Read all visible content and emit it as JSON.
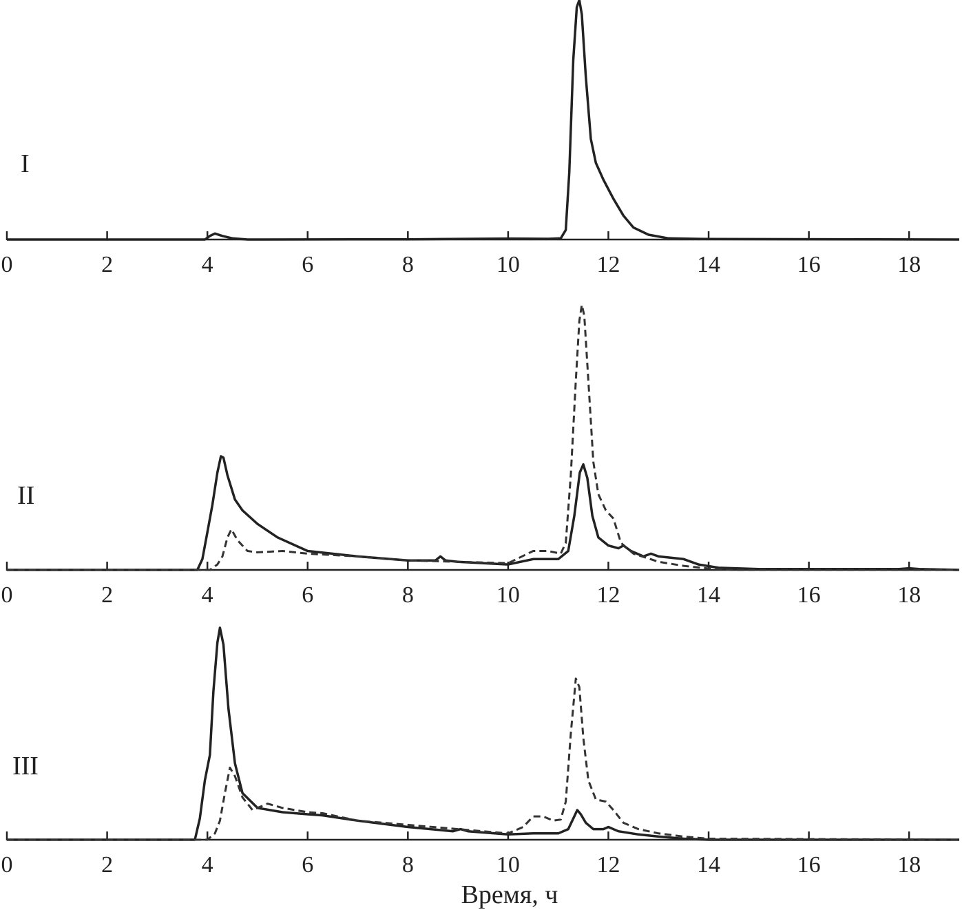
{
  "chart_data": [
    {
      "type": "line",
      "panel_label": "I",
      "xlim": [
        0,
        19
      ],
      "ylim": [
        0,
        100
      ],
      "xticks": [
        0,
        2,
        4,
        6,
        8,
        10,
        12,
        14,
        16,
        18
      ],
      "grid": false,
      "series": [
        {
          "style": "solid",
          "points": [
            [
              0,
              0
            ],
            [
              3.95,
              0
            ],
            [
              4.05,
              1.5
            ],
            [
              4.15,
              2.5
            ],
            [
              4.3,
              1.5
            ],
            [
              4.5,
              0.5
            ],
            [
              4.8,
              0
            ],
            [
              8,
              0.1
            ],
            [
              10,
              0.4
            ],
            [
              10.8,
              0.3
            ],
            [
              11.05,
              0.5
            ],
            [
              11.15,
              4
            ],
            [
              11.22,
              28
            ],
            [
              11.3,
              75
            ],
            [
              11.37,
              97
            ],
            [
              11.42,
              100
            ],
            [
              11.47,
              94
            ],
            [
              11.55,
              68
            ],
            [
              11.65,
              42
            ],
            [
              11.75,
              32
            ],
            [
              11.9,
              25
            ],
            [
              12.1,
              17
            ],
            [
              12.3,
              10
            ],
            [
              12.5,
              5
            ],
            [
              12.8,
              2
            ],
            [
              13.2,
              0.5
            ],
            [
              14,
              0.2
            ],
            [
              19,
              0
            ]
          ]
        }
      ]
    },
    {
      "type": "line",
      "panel_label": "II",
      "xlim": [
        0,
        19
      ],
      "ylim": [
        0,
        100
      ],
      "xticks": [
        0,
        2,
        4,
        6,
        8,
        10,
        12,
        14,
        16,
        18
      ],
      "grid": false,
      "series": [
        {
          "style": "solid",
          "points": [
            [
              0,
              0
            ],
            [
              3.8,
              0
            ],
            [
              3.9,
              4
            ],
            [
              4.0,
              14
            ],
            [
              4.1,
              24
            ],
            [
              4.2,
              36
            ],
            [
              4.27,
              42
            ],
            [
              4.32,
              41.5
            ],
            [
              4.4,
              35
            ],
            [
              4.55,
              26
            ],
            [
              4.7,
              22
            ],
            [
              5.0,
              17
            ],
            [
              5.4,
              12
            ],
            [
              6,
              7
            ],
            [
              7,
              5
            ],
            [
              8,
              3.5
            ],
            [
              8.55,
              3.5
            ],
            [
              8.65,
              5
            ],
            [
              8.75,
              3.5
            ],
            [
              9.0,
              3
            ],
            [
              10,
              2
            ],
            [
              10.5,
              4
            ],
            [
              11.0,
              4
            ],
            [
              11.2,
              7
            ],
            [
              11.32,
              20
            ],
            [
              11.43,
              36
            ],
            [
              11.5,
              39
            ],
            [
              11.58,
              34
            ],
            [
              11.68,
              20
            ],
            [
              11.8,
              12
            ],
            [
              12.0,
              9
            ],
            [
              12.2,
              8
            ],
            [
              12.3,
              9
            ],
            [
              12.45,
              7
            ],
            [
              12.7,
              5
            ],
            [
              12.85,
              6
            ],
            [
              13.0,
              5
            ],
            [
              13.5,
              4
            ],
            [
              13.8,
              2
            ],
            [
              14.2,
              0.8
            ],
            [
              15,
              0.3
            ],
            [
              17.8,
              0.3
            ],
            [
              18,
              0.6
            ],
            [
              18.2,
              0.3
            ],
            [
              19,
              0
            ]
          ]
        },
        {
          "style": "dashed",
          "points": [
            [
              0,
              0
            ],
            [
              4.05,
              0
            ],
            [
              4.2,
              2
            ],
            [
              4.3,
              5
            ],
            [
              4.4,
              12
            ],
            [
              4.48,
              15
            ],
            [
              4.6,
              11
            ],
            [
              4.8,
              7
            ],
            [
              5.0,
              6.5
            ],
            [
              5.5,
              7
            ],
            [
              6,
              6
            ],
            [
              7,
              5
            ],
            [
              8,
              3.5
            ],
            [
              9,
              3
            ],
            [
              10,
              2.5
            ],
            [
              10.5,
              7
            ],
            [
              10.8,
              7
            ],
            [
              11.05,
              6
            ],
            [
              11.15,
              10
            ],
            [
              11.25,
              35
            ],
            [
              11.35,
              70
            ],
            [
              11.42,
              92
            ],
            [
              11.47,
              98
            ],
            [
              11.52,
              94
            ],
            [
              11.6,
              70
            ],
            [
              11.7,
              40
            ],
            [
              11.8,
              28
            ],
            [
              11.95,
              22
            ],
            [
              12.1,
              19
            ],
            [
              12.25,
              10
            ],
            [
              12.5,
              6
            ],
            [
              13,
              3
            ],
            [
              13.5,
              1.5
            ],
            [
              14,
              0.5
            ],
            [
              14.5,
              0
            ],
            [
              19,
              0
            ]
          ]
        }
      ]
    },
    {
      "type": "line",
      "panel_label": "III",
      "xlim": [
        0,
        19
      ],
      "ylim": [
        0,
        100
      ],
      "xticks": [
        0,
        2,
        4,
        6,
        8,
        10,
        12,
        14,
        16,
        18
      ],
      "grid": false,
      "series": [
        {
          "style": "solid",
          "points": [
            [
              0,
              0
            ],
            [
              3.75,
              0
            ],
            [
              3.85,
              10
            ],
            [
              3.95,
              28
            ],
            [
              4.05,
              40
            ],
            [
              4.12,
              70
            ],
            [
              4.2,
              93
            ],
            [
              4.25,
              100
            ],
            [
              4.32,
              92
            ],
            [
              4.42,
              62
            ],
            [
              4.55,
              36
            ],
            [
              4.7,
              22
            ],
            [
              5.0,
              15
            ],
            [
              5.5,
              13
            ],
            [
              6,
              12
            ],
            [
              6.3,
              11.5
            ],
            [
              7,
              9
            ],
            [
              8,
              6
            ],
            [
              8.9,
              4
            ],
            [
              9.05,
              5
            ],
            [
              9.2,
              4
            ],
            [
              10,
              2.5
            ],
            [
              10.5,
              3
            ],
            [
              11.0,
              3
            ],
            [
              11.2,
              5
            ],
            [
              11.3,
              10
            ],
            [
              11.38,
              14
            ],
            [
              11.45,
              12
            ],
            [
              11.55,
              8
            ],
            [
              11.7,
              5
            ],
            [
              11.9,
              5
            ],
            [
              12.0,
              6
            ],
            [
              12.2,
              4
            ],
            [
              12.6,
              2.5
            ],
            [
              13,
              1.5
            ],
            [
              13.5,
              0.5
            ],
            [
              14,
              0
            ],
            [
              19,
              0
            ]
          ]
        },
        {
          "style": "dashed",
          "points": [
            [
              0,
              0
            ],
            [
              4.0,
              0
            ],
            [
              4.15,
              3
            ],
            [
              4.25,
              9
            ],
            [
              4.35,
              22
            ],
            [
              4.45,
              34
            ],
            [
              4.55,
              30
            ],
            [
              4.7,
              20
            ],
            [
              4.9,
              14
            ],
            [
              5.2,
              17
            ],
            [
              5.5,
              15
            ],
            [
              6,
              13
            ],
            [
              6.3,
              12.5
            ],
            [
              7,
              9
            ],
            [
              8,
              7
            ],
            [
              9,
              5
            ],
            [
              10,
              3
            ],
            [
              10.3,
              6
            ],
            [
              10.5,
              11
            ],
            [
              10.7,
              11
            ],
            [
              10.9,
              9
            ],
            [
              11.05,
              9.5
            ],
            [
              11.15,
              18
            ],
            [
              11.25,
              50
            ],
            [
              11.35,
              76
            ],
            [
              11.42,
              72
            ],
            [
              11.5,
              48
            ],
            [
              11.6,
              28
            ],
            [
              11.75,
              19
            ],
            [
              11.95,
              18
            ],
            [
              12.1,
              14
            ],
            [
              12.3,
              8
            ],
            [
              12.6,
              5
            ],
            [
              13,
              3
            ],
            [
              13.5,
              1.5
            ],
            [
              14,
              0.5
            ],
            [
              19,
              0
            ]
          ]
        }
      ]
    }
  ],
  "xlabel": "Время, ч"
}
